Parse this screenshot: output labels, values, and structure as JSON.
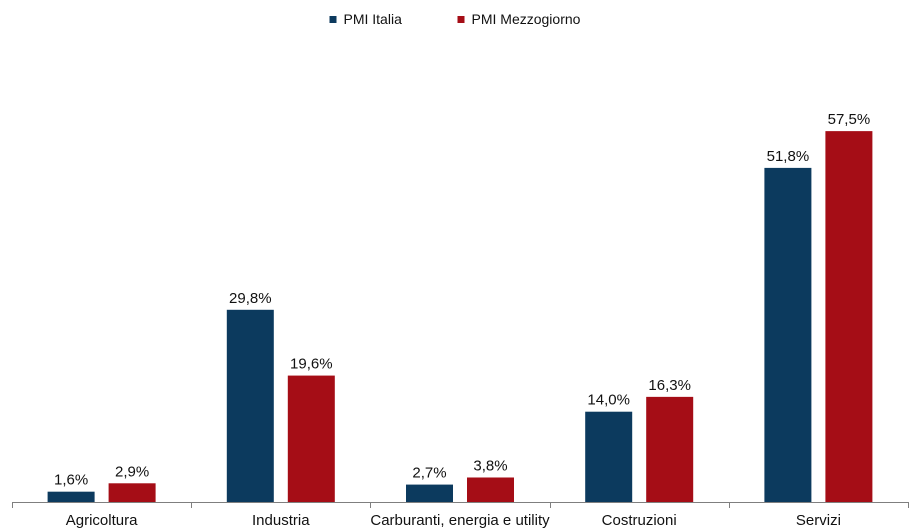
{
  "chart_data": {
    "type": "bar",
    "title": "",
    "xlabel": "",
    "ylabel": "",
    "categories": [
      "Agricoltura",
      "Industria",
      "Carburanti, energia e utility",
      "Costruzioni",
      "Servizi"
    ],
    "series": [
      {
        "name": "PMI Italia",
        "color": "#0c3a5e",
        "values": [
          1.6,
          29.8,
          2.7,
          14.0,
          51.8
        ],
        "labels": [
          "1,6%",
          "29,8%",
          "2,7%",
          "14,0%",
          "51,8%"
        ]
      },
      {
        "name": "PMI Mezzogiorno",
        "color": "#a50d16",
        "values": [
          2.9,
          19.6,
          3.8,
          16.3,
          57.5
        ],
        "labels": [
          "2,9%",
          "19,6%",
          "3,8%",
          "16,3%",
          "57,5%"
        ]
      }
    ],
    "ylim": [
      0,
      60
    ],
    "grid": false,
    "legend_position": "top-center",
    "y_axis_visible": false
  }
}
